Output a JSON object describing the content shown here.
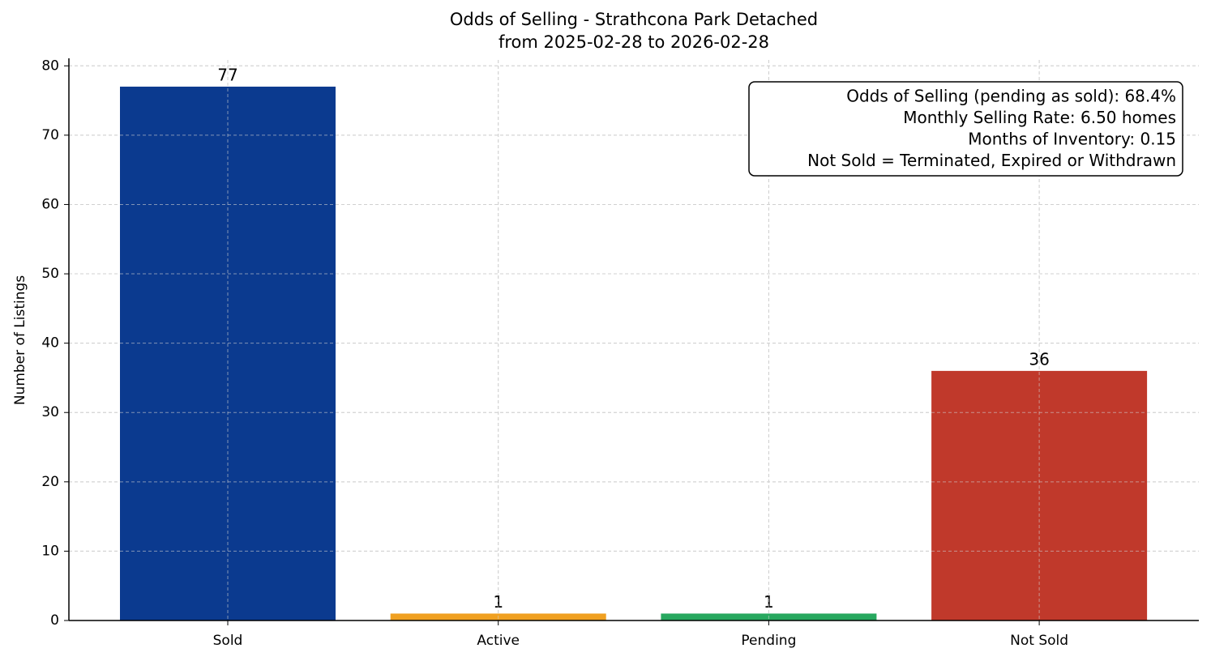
{
  "chart_data": {
    "type": "bar",
    "title": "Odds of Selling - Strathcona Park Detached",
    "subtitle": "from 2025-02-28 to 2026-02-28",
    "y_label": "Number of Listings",
    "categories": [
      "Sold",
      "Active",
      "Pending",
      "Not Sold"
    ],
    "values": [
      77,
      1,
      1,
      36
    ],
    "colors": [
      "#0b3a8f",
      "#f0a020",
      "#27a85f",
      "#c0392b"
    ],
    "ylim": [
      0,
      80.85
    ],
    "yticks": [
      0,
      10,
      20,
      30,
      40,
      50,
      60,
      70,
      80
    ],
    "grid": true,
    "annotation": [
      "Odds of Selling (pending as sold): 68.4%",
      "Monthly Selling Rate: 6.50 homes",
      "Months of Inventory: 0.15",
      "Not Sold = Terminated, Expired or Withdrawn"
    ]
  }
}
